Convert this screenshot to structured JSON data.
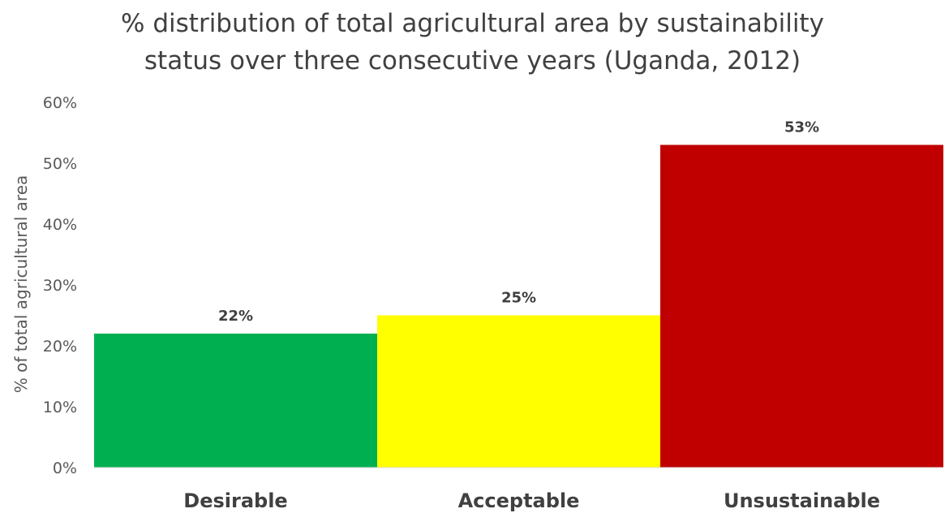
{
  "chart_data": {
    "type": "bar",
    "title_lines": [
      "% distribution of total agricultural area by sustainability",
      "status over three consecutive years (Uganda, 2012)"
    ],
    "ylabel": "% of total agricultural area",
    "xlabel": "",
    "categories": [
      "Desirable",
      "Acceptable",
      "Unsustainable"
    ],
    "values": [
      22,
      25,
      53
    ],
    "data_labels": [
      "22%",
      "25%",
      "53%"
    ],
    "colors": [
      "#00B050",
      "#FFFF00",
      "#C00000"
    ],
    "ylim": [
      0,
      60
    ],
    "yticks": [
      0,
      10,
      20,
      30,
      40,
      50,
      60
    ],
    "ytick_labels": [
      "0%",
      "10%",
      "20%",
      "30%",
      "40%",
      "50%",
      "60%"
    ],
    "grid": false,
    "legend": "none"
  }
}
